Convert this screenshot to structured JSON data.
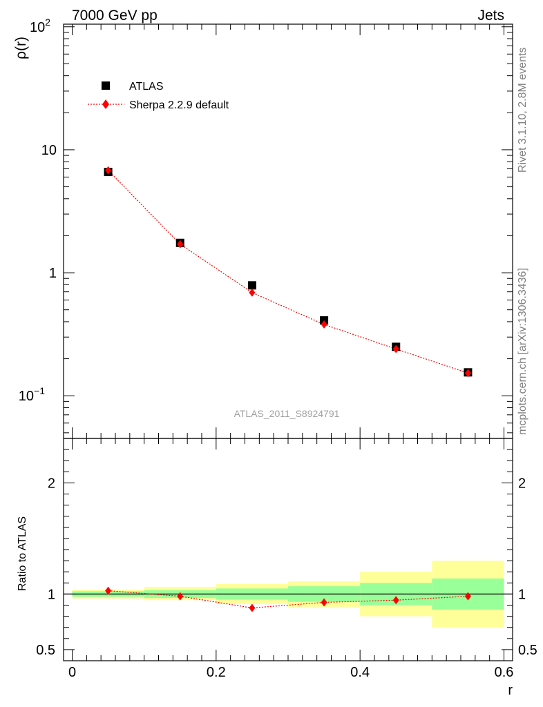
{
  "header": {
    "left": "7000 GeV pp",
    "right": "Jets"
  },
  "side_labels": {
    "top": "Rivet 3.1.10,  2.8M events",
    "bottom": "mcplots.cern.ch [arXiv:1306.3436]"
  },
  "watermark": "ATLAS_2011_S8924791",
  "colors": {
    "data": "#000000",
    "mc": "#ff0000",
    "band_inner": "#99ff99",
    "band_outer": "#ffff99"
  },
  "chart_data": [
    {
      "type": "scatter",
      "panel": "main",
      "ylabel": "ρ(r)",
      "yscale": "log",
      "ylim": [
        0.045,
        105
      ],
      "xlim": [
        -0.012,
        0.612
      ],
      "yticks": [
        {
          "value": 0.1,
          "label": "10",
          "sup": "−1"
        },
        {
          "value": 1,
          "label": "1",
          "sup": ""
        },
        {
          "value": 10,
          "label": "10",
          "sup": ""
        },
        {
          "value": 100,
          "label": "10",
          "sup": "2"
        }
      ],
      "legend": {
        "placement": "top-left",
        "entries": [
          "ATLAS",
          "Sherpa 2.2.9 default"
        ]
      },
      "series": [
        {
          "name": "ATLAS",
          "marker": "square",
          "color": "#000000",
          "x": [
            0.05,
            0.15,
            0.25,
            0.35,
            0.45,
            0.55
          ],
          "y": [
            6.6,
            1.75,
            0.79,
            0.41,
            0.25,
            0.155
          ]
        },
        {
          "name": "Sherpa 2.2.9 default",
          "marker": "diamond",
          "line": "dotted",
          "color": "#ff0000",
          "x": [
            0.05,
            0.15,
            0.25,
            0.35,
            0.45,
            0.55
          ],
          "y": [
            6.8,
            1.71,
            0.69,
            0.38,
            0.24,
            0.153
          ]
        }
      ]
    },
    {
      "type": "line",
      "panel": "ratio",
      "ylabel": "Ratio to ATLAS",
      "xlabel": "r",
      "ylim": [
        0.4,
        2.4
      ],
      "xlim": [
        -0.012,
        0.612
      ],
      "yticks": [
        0.5,
        1,
        2
      ],
      "xticks": [
        0,
        0.2,
        0.4,
        0.6
      ],
      "xtick_labels": [
        "0",
        "0.2",
        "0.4",
        "0.6"
      ],
      "reference_line": 1,
      "bands": {
        "x_edges": [
          0,
          0.1,
          0.2,
          0.3,
          0.4,
          0.5,
          0.6
        ],
        "outer": [
          [
            0.96,
            1.04
          ],
          [
            0.945,
            1.065
          ],
          [
            0.91,
            1.09
          ],
          [
            0.885,
            1.115
          ],
          [
            0.8,
            1.2
          ],
          [
            0.7,
            1.3
          ]
        ],
        "inner": [
          [
            0.975,
            1.025
          ],
          [
            0.965,
            1.035
          ],
          [
            0.95,
            1.05
          ],
          [
            0.93,
            1.07
          ],
          [
            0.9,
            1.1
          ],
          [
            0.86,
            1.14
          ]
        ]
      },
      "series": [
        {
          "name": "Sherpa 2.2.9 default",
          "marker": "diamond",
          "line": "dotted",
          "color": "#ff0000",
          "x": [
            0.05,
            0.15,
            0.25,
            0.35,
            0.45,
            0.55
          ],
          "y": [
            1.03,
            0.98,
            0.875,
            0.925,
            0.945,
            0.98
          ]
        }
      ]
    }
  ]
}
